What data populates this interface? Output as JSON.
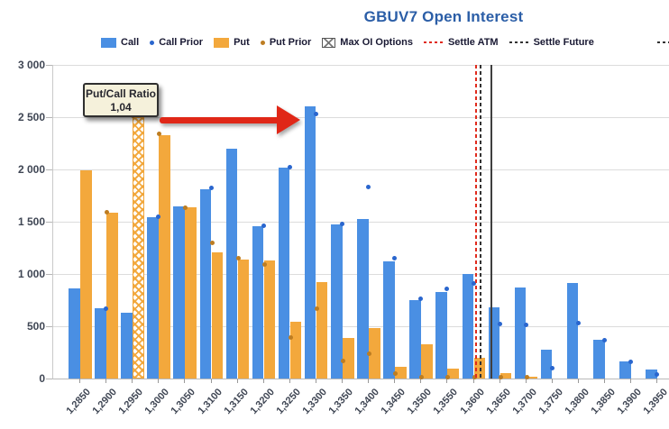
{
  "title": "GBUV7 Open Interest",
  "legend": [
    {
      "label": "Call",
      "swatch": "bar-blue"
    },
    {
      "label": "Call Prior",
      "swatch": "dot-blue"
    },
    {
      "label": "Put",
      "swatch": "bar-orange"
    },
    {
      "label": "Put Prior",
      "swatch": "dot-orange"
    },
    {
      "label": "Max OI Options",
      "swatch": "hatch"
    },
    {
      "label": "Settle ATM",
      "swatch": "dash-red"
    },
    {
      "label": "Settle Future",
      "swatch": "dash-black"
    }
  ],
  "tooltip": {
    "title": "Put/Call Ratio",
    "value": "1,04"
  },
  "colors": {
    "call": "#4A8FE3",
    "put": "#F3A83C",
    "call_prior": "#2A66CE",
    "put_prior": "#BD7D22",
    "settle_atm": "#E02B1D",
    "settle_future": "#333333",
    "solid_line": "#3F3F3F",
    "title": "#2B5EA7",
    "grid": "#DCDCDC",
    "arrow": "#E02717",
    "tooltip_bg": "#F5F1DB"
  },
  "chart_data": {
    "type": "bar",
    "title": "GBUV7 Open Interest",
    "categories": [
      "1,2850",
      "1,2900",
      "1,2950",
      "1,3000",
      "1,3050",
      "1,3100",
      "1,3150",
      "1,3200",
      "1,3250",
      "1,3300",
      "1,3350",
      "1,3400",
      "1,3450",
      "1,3500",
      "1,3550",
      "1,3600",
      "1,3650",
      "1,3700",
      "1,3750",
      "1,3800",
      "1,3850",
      "1,3900",
      "1,3950"
    ],
    "series": [
      {
        "name": "Call",
        "kind": "bar",
        "values": [
          860,
          670,
          630,
          1540,
          1650,
          1810,
          2200,
          1460,
          2020,
          2600,
          1470,
          1530,
          1120,
          750,
          830,
          1000,
          680,
          870,
          280,
          910,
          370,
          160,
          90
        ]
      },
      {
        "name": "Call Prior",
        "kind": "point",
        "values": [
          null,
          670,
          null,
          1545,
          null,
          1820,
          null,
          1460,
          2020,
          2530,
          1480,
          1830,
          1150,
          760,
          855,
          910,
          520,
          515,
          100,
          530,
          370,
          160,
          40
        ]
      },
      {
        "name": "Put",
        "kind": "bar",
        "values": [
          1990,
          1590,
          2500,
          2330,
          1640,
          1210,
          1140,
          1130,
          540,
          920,
          390,
          480,
          110,
          330,
          95,
          200,
          50,
          15,
          0,
          0,
          0,
          0,
          0
        ]
      },
      {
        "name": "Put Prior",
        "kind": "point",
        "values": [
          null,
          1590,
          2510,
          2340,
          1630,
          1300,
          1150,
          1090,
          390,
          670,
          170,
          240,
          50,
          10,
          10,
          10,
          10,
          10,
          null,
          null,
          null,
          null,
          null
        ]
      }
    ],
    "max_oi_strike": "1,2950",
    "put_call_ratio": "1,04",
    "ylim": [
      0,
      3000
    ],
    "y_ticks": [
      "3 000",
      "2 500",
      "2 000",
      "1 500",
      "1 000",
      "500",
      "0"
    ],
    "grid": true,
    "legend_position": "top",
    "markers": [
      {
        "name": "Settle ATM",
        "style": "dashed-red",
        "near_strike": "1,3600"
      },
      {
        "name": "Settle Future",
        "style": "dashed-black",
        "near_strike": "1,3600"
      },
      {
        "name": "unlabeled-solid-line",
        "style": "solid-dark",
        "near_strike": "1,3650"
      }
    ]
  }
}
